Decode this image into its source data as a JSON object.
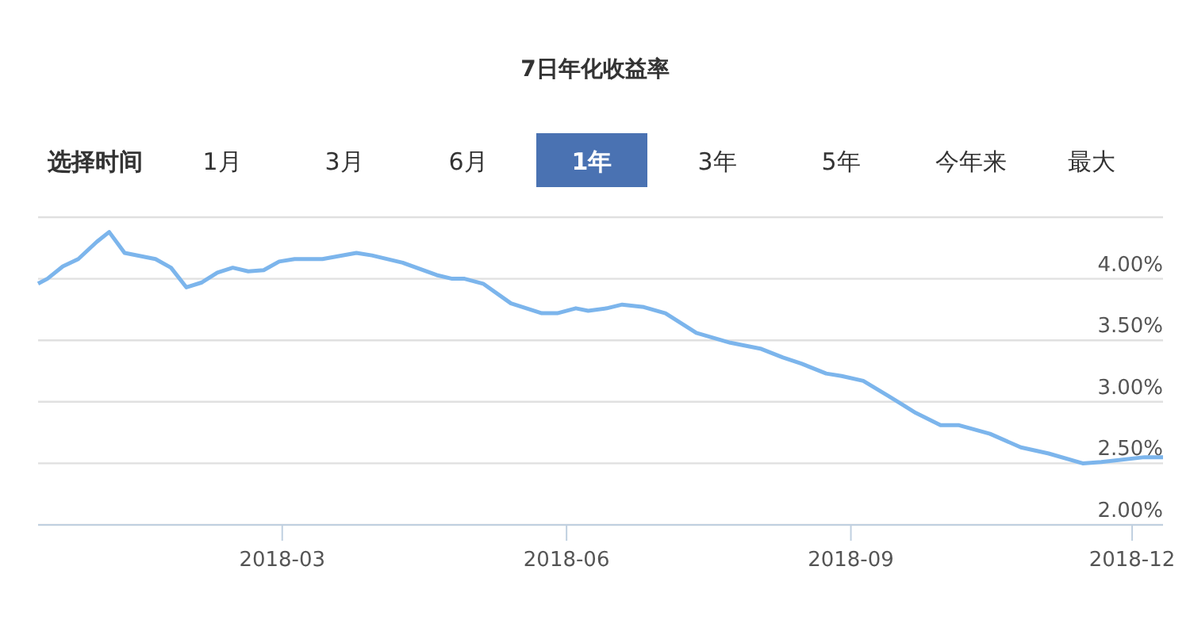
{
  "chart_data": {
    "type": "line",
    "title": "7日年化收益率",
    "annotations": [
      "选择时间",
      "1月",
      "3月",
      "6月",
      "1年",
      "3年",
      "5年",
      "今年来",
      "最大"
    ],
    "x": [
      "2017-12-12",
      "2017-12-15",
      "2017-12-20",
      "2017-12-25",
      "2017-12-31",
      "2018-01-04",
      "2018-01-09",
      "2018-01-19",
      "2018-01-24",
      "2018-01-29",
      "2018-02-03",
      "2018-02-08",
      "2018-02-13",
      "2018-02-18",
      "2018-02-23",
      "2018-02-28",
      "2018-03-05",
      "2018-03-14",
      "2018-03-25",
      "2018-03-30",
      "2018-04-09",
      "2018-04-20",
      "2018-04-25",
      "2018-04-29",
      "2018-05-05",
      "2018-05-14",
      "2018-05-24",
      "2018-05-29",
      "2018-06-04",
      "2018-06-08",
      "2018-06-14",
      "2018-06-19",
      "2018-06-26",
      "2018-07-03",
      "2018-07-13",
      "2018-07-24",
      "2018-08-03",
      "2018-08-10",
      "2018-08-16",
      "2018-08-24",
      "2018-08-29",
      "2018-09-05",
      "2018-09-13",
      "2018-09-22",
      "2018-09-30",
      "2018-10-06",
      "2018-10-16",
      "2018-10-26",
      "2018-11-04",
      "2018-11-15",
      "2018-11-21",
      "2018-12-05",
      "2018-12-11"
    ],
    "series": [
      {
        "color": "#7cb5ec",
        "values": [
          3.96,
          4.0,
          4.1,
          4.16,
          4.3,
          4.38,
          4.21,
          4.16,
          4.09,
          3.93,
          3.97,
          4.05,
          4.09,
          4.06,
          4.07,
          4.14,
          4.16,
          4.16,
          4.21,
          4.19,
          4.13,
          4.03,
          4.0,
          4.0,
          3.96,
          3.8,
          3.72,
          3.72,
          3.76,
          3.74,
          3.76,
          3.79,
          3.77,
          3.72,
          3.56,
          3.48,
          3.43,
          3.36,
          3.31,
          3.23,
          3.21,
          3.17,
          3.05,
          2.91,
          2.81,
          2.81,
          2.74,
          2.63,
          2.58,
          2.5,
          2.51,
          2.55,
          2.55
        ]
      }
    ],
    "xlim": [
      "2017-12-12",
      "2018-12-11"
    ],
    "xticks": [
      {
        "value": "2018-03-01",
        "label": "2018-03"
      },
      {
        "value": "2018-06-01",
        "label": "2018-06"
      },
      {
        "value": "2018-09-01",
        "label": "2018-09"
      },
      {
        "value": "2018-12-01",
        "label": "2018-12"
      }
    ],
    "ylim": [
      2,
      4.5
    ],
    "yticks": [
      {
        "value": 2,
        "label": "2.00%"
      },
      {
        "value": 2.5,
        "label": "2.50%"
      },
      {
        "value": 3,
        "label": "3.00%"
      },
      {
        "value": 3.5,
        "label": "3.50%"
      },
      {
        "value": 4,
        "label": "4.00%"
      },
      {
        "value": 4.5,
        "label": null
      }
    ],
    "grid": "y",
    "marker": "none",
    "line_style": "solid"
  }
}
